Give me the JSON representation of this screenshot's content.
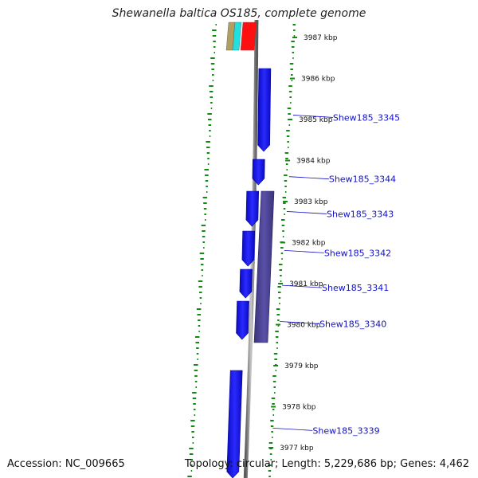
{
  "title": "Shewanella baltica OS185, complete genome",
  "accession": "Accession: NC_009665",
  "topology": "Topology: circular; Length: 5,229,686 bp; Genes: 4,462",
  "ticks": [
    {
      "label": "3987 kbp",
      "pos": 3987
    },
    {
      "label": "3986 kbp",
      "pos": 3986
    },
    {
      "label": "3985 kbp",
      "pos": 3985
    },
    {
      "label": "3984 kbp",
      "pos": 3984
    },
    {
      "label": "3983 kbp",
      "pos": 3983
    },
    {
      "label": "3982 kbp",
      "pos": 3982
    },
    {
      "label": "3981 kbp",
      "pos": 3981
    },
    {
      "label": "3980 kbp",
      "pos": 3980
    },
    {
      "label": "3979 kbp",
      "pos": 3979
    },
    {
      "label": "3978 kbp",
      "pos": 3978
    },
    {
      "label": "3977 kbp",
      "pos": 3977
    }
  ],
  "gene_labels": [
    {
      "text": "Shew185_3345",
      "pos": 3985.05
    },
    {
      "text": "Shew185_3344",
      "pos": 3983.55
    },
    {
      "text": "Shew185_3343",
      "pos": 3982.7
    },
    {
      "text": "Shew185_3342",
      "pos": 3981.75
    },
    {
      "text": "Shew185_3341",
      "pos": 3980.9
    },
    {
      "text": "Shew185_3340",
      "pos": 3980.02
    },
    {
      "text": "Shew185_3339",
      "pos": 3977.42
    }
  ],
  "colors": {
    "cds": "#1414e8",
    "cds_reverse": "#4a4090",
    "backbone": "#8a8a8a",
    "gc_skew": "#138a13",
    "gene_label": "#1010c8"
  }
}
